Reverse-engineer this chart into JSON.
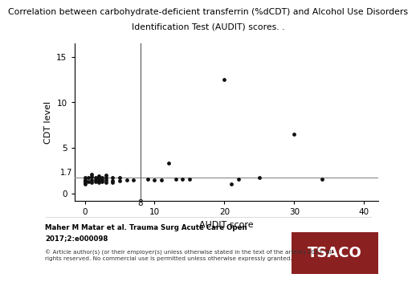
{
  "title_line1": "Correlation between carbohydrate-deficient transferrin (%dCDT) and Alcohol Use Disorders",
  "title_line2": "Identification Test (AUDIT) scores. .",
  "xlabel": "AUDIT score",
  "ylabel": "CDT level",
  "scatter_x": [
    0,
    0,
    0,
    0,
    0,
    0,
    0.5,
    0.5,
    1,
    1,
    1,
    1,
    1.5,
    1.5,
    1.5,
    2,
    2,
    2,
    2,
    2,
    2.5,
    2.5,
    2.5,
    3,
    3,
    3,
    3,
    4,
    4,
    4,
    5,
    5,
    6,
    7,
    9,
    10,
    11,
    12,
    13,
    14,
    15,
    20,
    21,
    22,
    25,
    30,
    34
  ],
  "scatter_y": [
    1.7,
    1.5,
    1.4,
    1.3,
    1.2,
    1.0,
    1.7,
    1.3,
    2.1,
    1.8,
    1.5,
    1.2,
    1.7,
    1.5,
    1.3,
    1.9,
    1.7,
    1.6,
    1.4,
    1.2,
    1.7,
    1.5,
    1.3,
    2.0,
    1.7,
    1.5,
    1.2,
    1.7,
    1.4,
    1.2,
    1.7,
    1.4,
    1.5,
    1.5,
    1.6,
    1.5,
    1.5,
    3.3,
    1.6,
    1.6,
    1.6,
    12.5,
    1.0,
    1.6,
    1.7,
    6.5,
    1.6
  ],
  "hline_y": 1.7,
  "vline_x": 8,
  "hline_color": "#888888",
  "vline_color": "#555555",
  "dot_color": "#111111",
  "dot_size": 12,
  "xlim": [
    -1.5,
    42
  ],
  "ylim": [
    -0.8,
    16.5
  ],
  "xticks": [
    0,
    10,
    20,
    30,
    40
  ],
  "yticks": [
    0,
    5,
    10,
    15
  ],
  "title_fontsize": 7.8,
  "axis_label_fontsize": 8,
  "tick_fontsize": 7.5,
  "footer_text1": "Maher M Matar et al. Trauma Surg Acute Care Open",
  "footer_text2": "2017;2:e000098",
  "footer_text3": "© Article author(s) (or their employer(s) unless otherwise stated in the text of the article) 2017. All\nrights reserved. No commercial use is permitted unless otherwise expressly granted.",
  "tsaco_bg": "#8B2020",
  "tsaco_text": "TSACO"
}
